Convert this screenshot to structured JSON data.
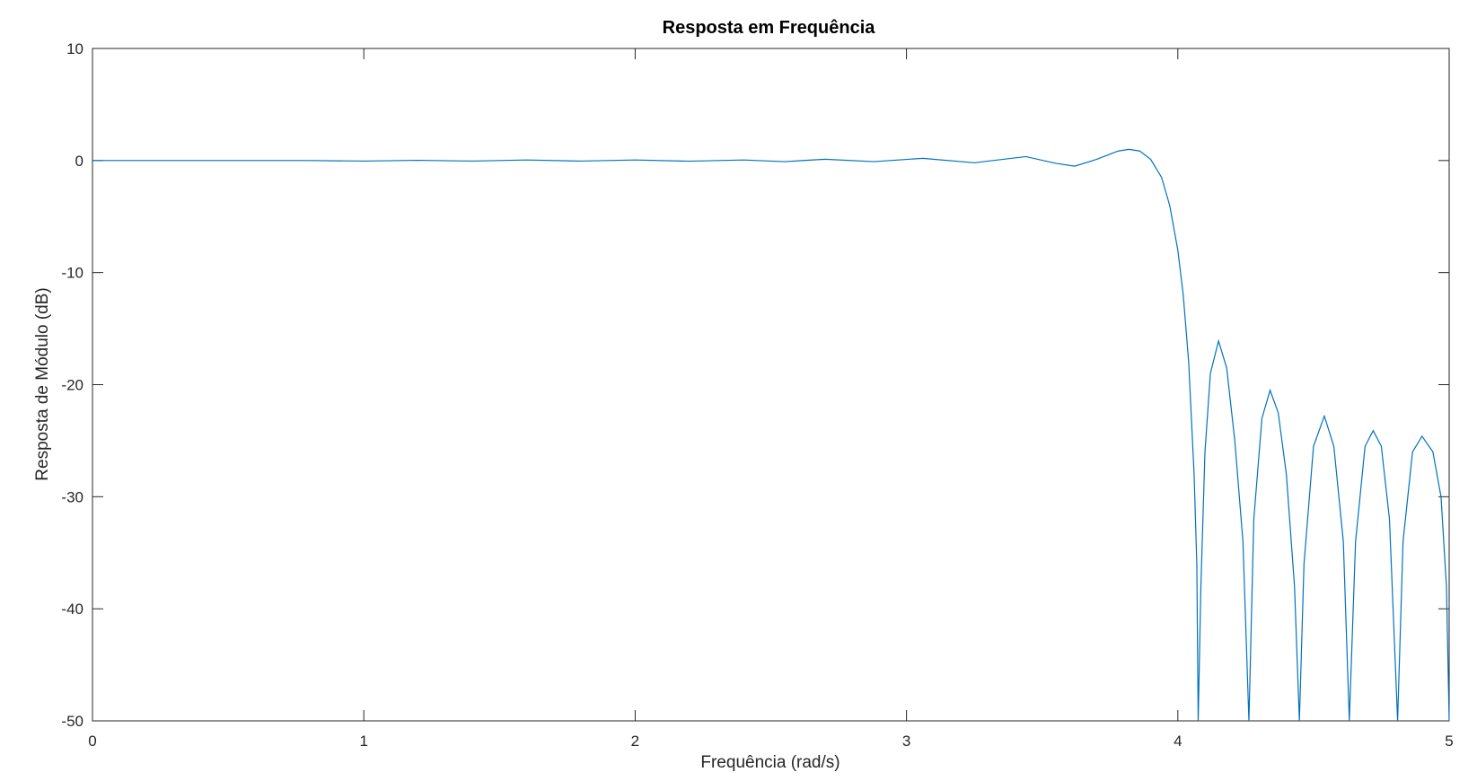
{
  "chart_data": {
    "type": "line",
    "title": "Resposta em Frequência",
    "xlabel": "Frequência (rad/s)",
    "ylabel": "Resposta de Módulo (dB)",
    "xlim": [
      0,
      5
    ],
    "ylim": [
      -50,
      10
    ],
    "xticks": [
      0,
      1,
      2,
      3,
      4,
      5
    ],
    "yticks": [
      10,
      0,
      -10,
      -20,
      -30,
      -40,
      -50
    ],
    "xtick_labels": [
      "0",
      "1",
      "2",
      "3",
      "4",
      "5"
    ],
    "ytick_labels": [
      "10",
      "0",
      "-10",
      "-20",
      "-30",
      "-40",
      "-50"
    ],
    "grid": false,
    "line_color": "#0072BD",
    "series": [
      {
        "points": [
          [
            0.0,
            0.0
          ],
          [
            0.3,
            0.0
          ],
          [
            0.6,
            0.0
          ],
          [
            0.8,
            0.0
          ],
          [
            1.0,
            -0.05
          ],
          [
            1.2,
            0.02
          ],
          [
            1.4,
            -0.05
          ],
          [
            1.6,
            0.05
          ],
          [
            1.8,
            -0.05
          ],
          [
            2.0,
            0.05
          ],
          [
            2.2,
            -0.06
          ],
          [
            2.4,
            0.05
          ],
          [
            2.55,
            -0.1
          ],
          [
            2.7,
            0.12
          ],
          [
            2.88,
            -0.1
          ],
          [
            3.06,
            0.2
          ],
          [
            3.25,
            -0.2
          ],
          [
            3.44,
            0.35
          ],
          [
            3.55,
            -0.25
          ],
          [
            3.62,
            -0.5
          ],
          [
            3.7,
            0.1
          ],
          [
            3.78,
            0.85
          ],
          [
            3.82,
            1.0
          ],
          [
            3.86,
            0.85
          ],
          [
            3.9,
            0.1
          ],
          [
            3.94,
            -1.5
          ],
          [
            3.97,
            -4.0
          ],
          [
            4.0,
            -8.0
          ],
          [
            4.02,
            -12.0
          ],
          [
            4.04,
            -18.0
          ],
          [
            4.06,
            -28.0
          ],
          [
            4.07,
            -36.0
          ],
          [
            4.075,
            -50.0
          ],
          [
            4.085,
            -38.0
          ],
          [
            4.1,
            -26.0
          ],
          [
            4.12,
            -19.0
          ],
          [
            4.15,
            -16.1
          ],
          [
            4.18,
            -18.5
          ],
          [
            4.21,
            -25.0
          ],
          [
            4.24,
            -34.0
          ],
          [
            4.262,
            -50.0
          ],
          [
            4.28,
            -32.0
          ],
          [
            4.31,
            -23.0
          ],
          [
            4.34,
            -20.5
          ],
          [
            4.37,
            -22.5
          ],
          [
            4.4,
            -28.0
          ],
          [
            4.43,
            -38.0
          ],
          [
            4.448,
            -50.0
          ],
          [
            4.465,
            -36.0
          ],
          [
            4.5,
            -25.5
          ],
          [
            4.54,
            -22.8
          ],
          [
            4.575,
            -25.5
          ],
          [
            4.61,
            -34.0
          ],
          [
            4.632,
            -50.0
          ],
          [
            4.655,
            -34.0
          ],
          [
            4.69,
            -25.5
          ],
          [
            4.72,
            -24.1
          ],
          [
            4.75,
            -25.5
          ],
          [
            4.78,
            -32.0
          ],
          [
            4.81,
            -50.0
          ],
          [
            4.83,
            -34.0
          ],
          [
            4.865,
            -26.0
          ],
          [
            4.9,
            -24.6
          ],
          [
            4.94,
            -26.0
          ],
          [
            4.97,
            -30.0
          ],
          [
            4.99,
            -38.0
          ],
          [
            5.0,
            -50.0
          ]
        ]
      }
    ]
  }
}
